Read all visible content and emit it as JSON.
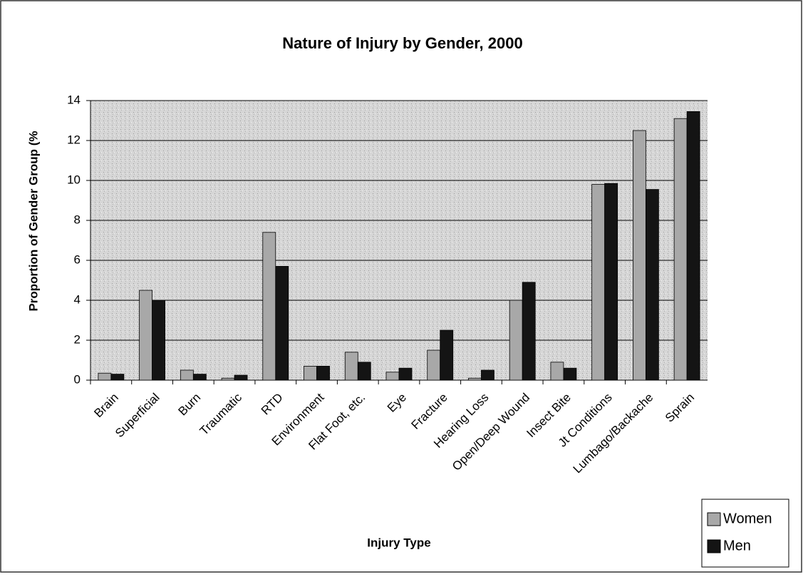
{
  "chart_data": {
    "type": "bar",
    "title": "Nature of Injury by Gender, 2000",
    "x_label": "Injury Type",
    "y_label": "Proportion of Gender Group (%",
    "categories": [
      "Brain",
      "Superficial",
      "Burn",
      "Traumatic",
      "RTD",
      "Environment",
      "Flat Foot, etc.",
      "Eye",
      "Fracture",
      "Hearing Loss",
      "Open/Deep Wound",
      "Insect Bite",
      "Jt Conditions",
      "Lumbago/Backache",
      "Sprain"
    ],
    "series": [
      {
        "name": "Women",
        "color": "#a8a8a8",
        "values": [
          0.35,
          4.5,
          0.5,
          0.1,
          7.4,
          0.7,
          1.4,
          0.4,
          1.5,
          0.1,
          4.0,
          0.9,
          9.8,
          12.5,
          13.1
        ]
      },
      {
        "name": "Men",
        "color": "#141414",
        "values": [
          0.3,
          4.0,
          0.3,
          0.25,
          5.7,
          0.7,
          0.9,
          0.6,
          2.5,
          0.5,
          4.9,
          0.6,
          9.85,
          9.55,
          13.45
        ]
      }
    ],
    "ylim": [
      0,
      14
    ],
    "yticks": [
      0,
      2,
      4,
      6,
      8,
      10,
      12,
      14
    ],
    "grid": true,
    "legend": "bottom-right"
  }
}
